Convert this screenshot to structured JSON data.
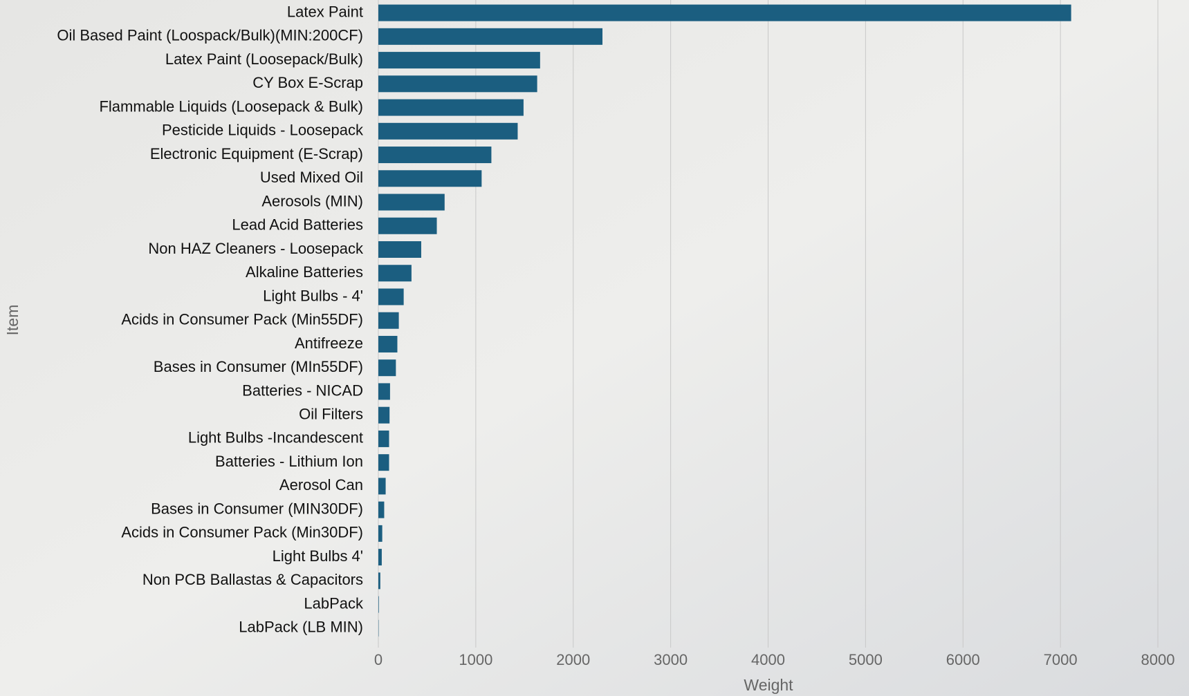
{
  "chart_data": {
    "type": "bar",
    "orientation": "horizontal",
    "x_label": "Weight",
    "y_label": "Item",
    "categories": [
      "Latex Paint",
      "Oil Based Paint (Loospack/Bulk)(MIN:200CF)",
      "Latex Paint (Loosepack/Bulk)",
      "CY Box E-Scrap",
      "Flammable Liquids (Loosepack & Bulk)",
      "Pesticide Liquids - Loosepack",
      "Electronic Equipment (E-Scrap)",
      "Used Mixed Oil",
      "Aerosols (MIN)",
      "Lead Acid Batteries",
      "Non HAZ Cleaners - Loosepack",
      "Alkaline Batteries",
      "Light Bulbs - 4'",
      "Acids in Consumer Pack (Min55DF)",
      "Antifreeze",
      "Bases in Consumer (MIn55DF)",
      "Batteries - NICAD",
      "Oil Filters",
      "Light Bulbs -Incandescent",
      "Batteries - Lithium Ion",
      "Aerosol Can",
      "Bases in Consumer (MIN30DF)",
      "Acids in Consumer Pack (Min30DF)",
      "Light Bulbs 4'",
      "Non PCB Ballastas & Capacitors",
      "LabPack",
      "LabPack (LB MIN)"
    ],
    "values": [
      7110,
      2300,
      1660,
      1630,
      1490,
      1430,
      1160,
      1060,
      680,
      600,
      440,
      340,
      260,
      210,
      195,
      180,
      120,
      115,
      110,
      110,
      75,
      60,
      40,
      35,
      20,
      5,
      3
    ],
    "color": "#1b5e80",
    "xlim": [
      0,
      8000
    ],
    "xticks": [
      0,
      1000,
      2000,
      3000,
      4000,
      5000,
      6000,
      7000,
      8000
    ],
    "grid": true
  }
}
